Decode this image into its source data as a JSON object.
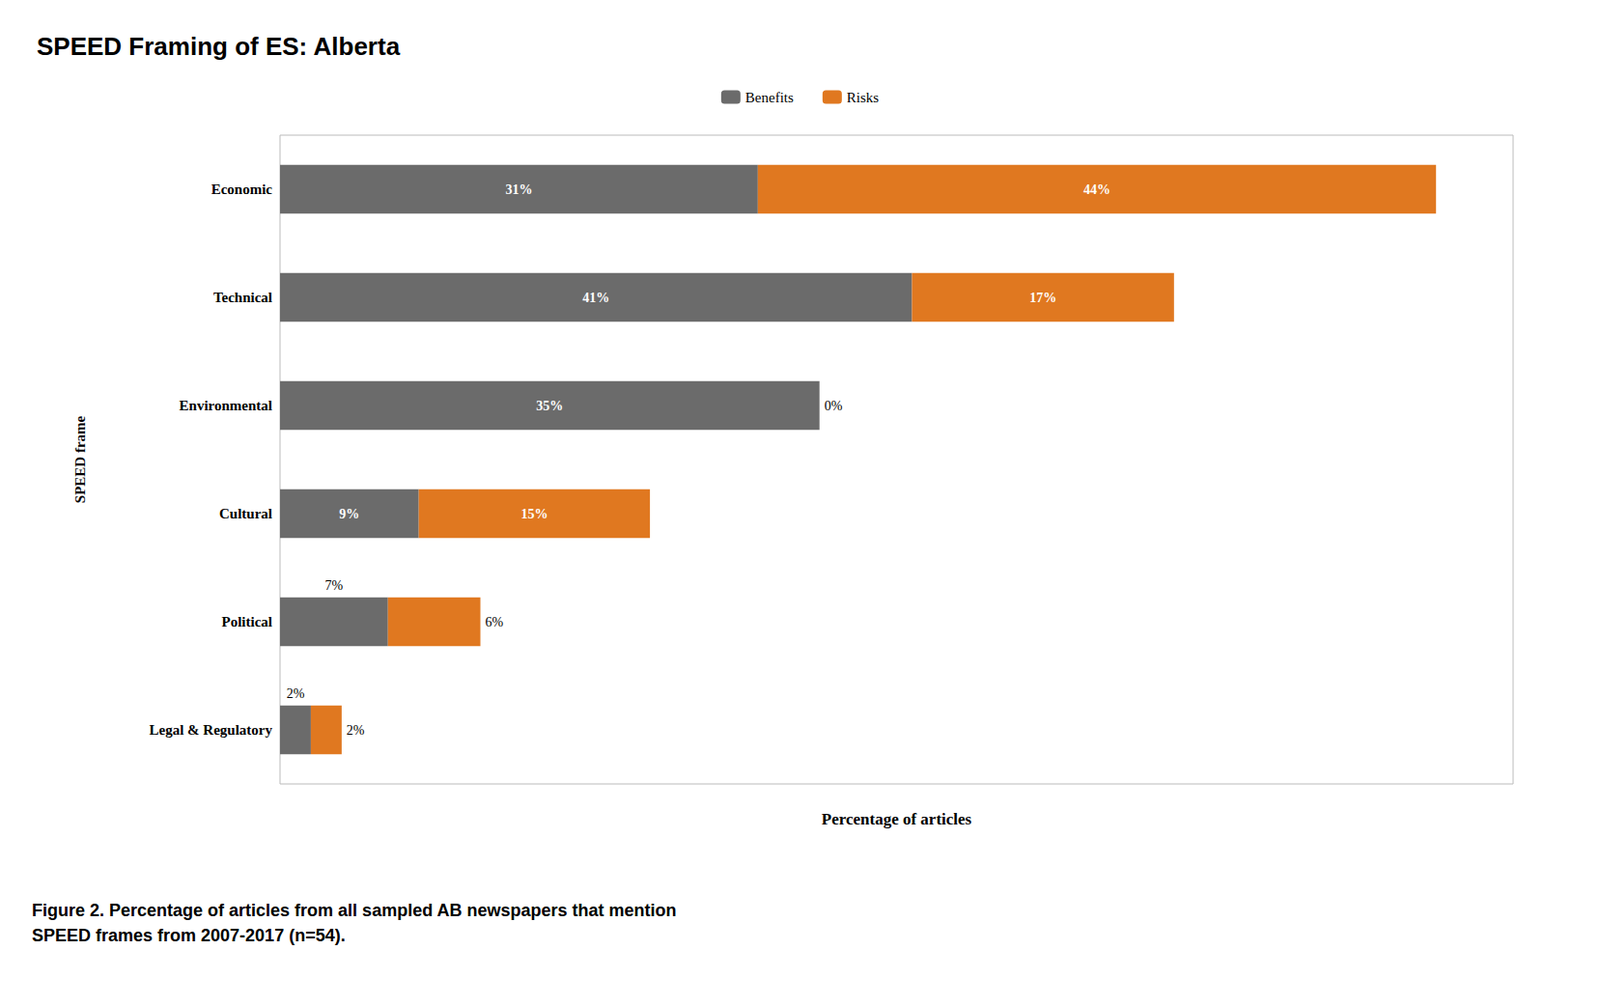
{
  "chart_data": {
    "type": "bar",
    "orientation": "horizontal",
    "stacked": true,
    "title": "SPEED Framing of ES: Alberta",
    "xlabel": "Percentage of articles",
    "ylabel": "SPEED frame",
    "caption": "Figure 2. Percentage of articles from all sampled AB newspapers that mention\nSPEED frames from 2007-2017 (n=54).",
    "categories": [
      "Economic",
      "Technical",
      "Environmental",
      "Cultural",
      "Political",
      "Legal & Regulatory"
    ],
    "series": [
      {
        "name": "Benefits",
        "color": "#6b6b6b",
        "values": [
          31,
          41,
          35,
          9,
          7,
          2
        ],
        "value_labels": [
          "31%",
          "41%",
          "35%",
          "9%",
          "7%",
          "2%"
        ]
      },
      {
        "name": "Risks",
        "color": "#e07820",
        "values": [
          44,
          17,
          0,
          15,
          6,
          2
        ],
        "value_labels": [
          "44%",
          "17%",
          "0%",
          "15%",
          "6%",
          "2%"
        ]
      }
    ],
    "xlim": [
      0,
      80
    ],
    "tick_labels": "y",
    "grid": false,
    "legend": "top",
    "data_labels": true
  }
}
